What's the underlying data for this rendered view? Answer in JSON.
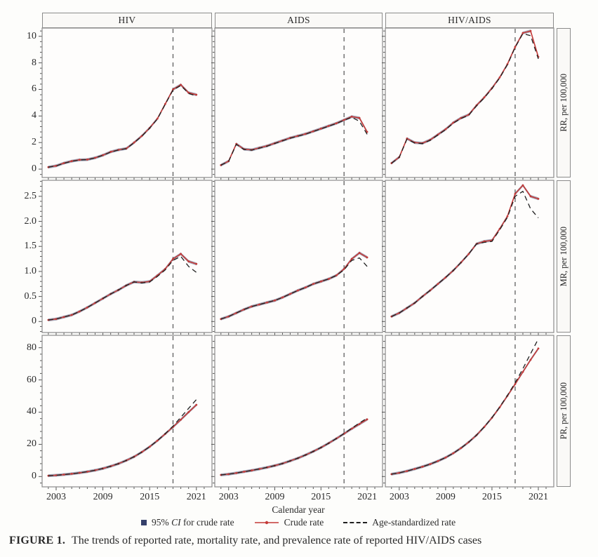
{
  "figure": {
    "caption_label": "FIGURE 1.",
    "caption_text": "The trends of reported rate, mortality rate, and prevalence rate of reported HIV/AIDS cases"
  },
  "chart_data": {
    "type": "line",
    "title": "",
    "xlabel": "Calendar year",
    "facet_columns": [
      "HIV",
      "AIDS",
      "HIV/AIDS"
    ],
    "years": [
      2002,
      2003,
      2004,
      2005,
      2006,
      2007,
      2008,
      2009,
      2010,
      2011,
      2012,
      2013,
      2014,
      2015,
      2016,
      2017,
      2018,
      2019,
      2020,
      2021
    ],
    "x_major_ticks": [
      2003,
      2009,
      2015,
      2021
    ],
    "x_minor_step": 1,
    "xlim": [
      2001.2,
      2023
    ],
    "reference_line_x": 2018,
    "grid": "off",
    "legend_position": "bottom",
    "colors": {
      "crude": "#c43a38",
      "age": "#1f1f1f",
      "ci": "#35406b",
      "refline": "#5f5f5f",
      "frame": "#8b8b8b"
    },
    "rows": [
      {
        "label": "RR, per 100,000",
        "ylim": [
          -0.63,
          10.62
        ],
        "ytick_values": [
          0,
          2,
          4,
          6,
          8,
          10
        ],
        "ytick_labels": [
          "0",
          "2",
          "4",
          "6",
          "8",
          "10"
        ],
        "y_minor_step": 0.4,
        "series": {
          "HIV": {
            "crude": [
              0.15,
              0.25,
              0.45,
              0.6,
              0.7,
              0.72,
              0.85,
              1.05,
              1.3,
              1.45,
              1.55,
              2.0,
              2.5,
              3.1,
              3.8,
              4.9,
              6.0,
              6.35,
              5.75,
              5.6
            ],
            "age_standardized": [
              0.15,
              0.24,
              0.44,
              0.59,
              0.69,
              0.71,
              0.84,
              1.04,
              1.28,
              1.44,
              1.54,
              1.98,
              2.48,
              3.08,
              3.78,
              4.88,
              5.95,
              6.3,
              5.7,
              5.5
            ]
          },
          "AIDS": {
            "crude": [
              0.3,
              0.6,
              1.9,
              1.5,
              1.45,
              1.6,
              1.75,
              1.95,
              2.15,
              2.35,
              2.5,
              2.65,
              2.85,
              3.05,
              3.25,
              3.45,
              3.7,
              3.95,
              3.85,
              2.8
            ],
            "age_standardized": [
              0.3,
              0.58,
              1.86,
              1.48,
              1.43,
              1.58,
              1.73,
              1.93,
              2.13,
              2.33,
              2.48,
              2.63,
              2.83,
              3.03,
              3.23,
              3.43,
              3.68,
              3.9,
              3.6,
              2.62
            ]
          },
          "HIV/AIDS": {
            "crude": [
              0.45,
              0.9,
              2.3,
              2.0,
              1.95,
              2.2,
              2.6,
              3.0,
              3.5,
              3.85,
              4.1,
              4.8,
              5.4,
              6.1,
              6.9,
              7.9,
              9.2,
              10.25,
              10.4,
              8.45
            ],
            "age_standardized": [
              0.44,
              0.88,
              2.26,
              1.97,
              1.92,
              2.17,
              2.57,
              2.97,
              3.46,
              3.81,
              4.06,
              4.76,
              5.36,
              6.06,
              6.86,
              7.86,
              9.16,
              10.2,
              10.05,
              8.3
            ]
          }
        }
      },
      {
        "label": "MR, per 100,000",
        "ylim": [
          -0.22,
          2.82
        ],
        "ytick_values": [
          0,
          0.5,
          1.0,
          1.5,
          2.0,
          2.5
        ],
        "ytick_labels": [
          "0",
          "0.5",
          "1.0",
          "1.5",
          "2.0",
          "2.5"
        ],
        "y_minor_step": 0.1,
        "series": {
          "HIV": {
            "crude": [
              0.03,
              0.05,
              0.09,
              0.13,
              0.2,
              0.28,
              0.37,
              0.46,
              0.55,
              0.63,
              0.72,
              0.79,
              0.78,
              0.8,
              0.92,
              1.05,
              1.25,
              1.35,
              1.2,
              1.15
            ],
            "age_standardized": [
              0.03,
              0.05,
              0.09,
              0.13,
              0.2,
              0.28,
              0.37,
              0.46,
              0.55,
              0.63,
              0.72,
              0.79,
              0.77,
              0.79,
              0.9,
              1.03,
              1.22,
              1.3,
              1.1,
              0.98
            ]
          },
          "AIDS": {
            "crude": [
              0.05,
              0.1,
              0.17,
              0.24,
              0.3,
              0.34,
              0.38,
              0.42,
              0.48,
              0.55,
              0.62,
              0.68,
              0.75,
              0.8,
              0.85,
              0.92,
              1.05,
              1.25,
              1.37,
              1.28
            ],
            "age_standardized": [
              0.05,
              0.1,
              0.17,
              0.24,
              0.3,
              0.34,
              0.38,
              0.42,
              0.48,
              0.55,
              0.62,
              0.68,
              0.75,
              0.8,
              0.85,
              0.92,
              1.03,
              1.22,
              1.27,
              1.1
            ]
          },
          "HIV/AIDS": {
            "crude": [
              0.1,
              0.17,
              0.27,
              0.37,
              0.5,
              0.62,
              0.75,
              0.88,
              1.02,
              1.18,
              1.35,
              1.55,
              1.6,
              1.62,
              1.85,
              2.1,
              2.55,
              2.72,
              2.5,
              2.45
            ],
            "age_standardized": [
              0.1,
              0.17,
              0.27,
              0.37,
              0.5,
              0.62,
              0.75,
              0.88,
              1.02,
              1.18,
              1.35,
              1.55,
              1.58,
              1.6,
              1.83,
              2.08,
              2.5,
              2.6,
              2.25,
              2.07
            ]
          }
        }
      },
      {
        "label": "PR, per 100,000",
        "ylim": [
          -6.4,
          87.7
        ],
        "ytick_values": [
          0,
          20,
          40,
          60,
          80
        ],
        "ytick_labels": [
          "0",
          "20",
          "40",
          "60",
          "80"
        ],
        "y_minor_step": 4,
        "series": {
          "HIV": {
            "crude": [
              0.5,
              0.8,
              1.2,
              1.7,
              2.3,
              3.0,
              3.9,
              5.0,
              6.4,
              8.0,
              10.0,
              12.3,
              15.2,
              18.5,
              22.3,
              26.5,
              30.8,
              35.3,
              40.0,
              44.5
            ],
            "age_standardized": [
              0.5,
              0.8,
              1.2,
              1.7,
              2.3,
              3.0,
              3.9,
              5.0,
              6.4,
              8.0,
              10.0,
              12.3,
              15.2,
              18.5,
              22.3,
              26.6,
              31.3,
              36.8,
              42.3,
              47.8
            ]
          },
          "AIDS": {
            "crude": [
              1.0,
              1.5,
              2.2,
              3.0,
              3.8,
              4.7,
              5.7,
              6.8,
              8.1,
              9.7,
              11.4,
              13.4,
              15.6,
              18.0,
              20.7,
              23.6,
              26.6,
              29.7,
              32.6,
              35.5
            ],
            "age_standardized": [
              1.0,
              1.5,
              2.2,
              3.0,
              3.8,
              4.7,
              5.7,
              6.8,
              8.1,
              9.7,
              11.4,
              13.4,
              15.6,
              18.0,
              20.7,
              23.6,
              26.7,
              30.0,
              33.3,
              36.3
            ]
          },
          "HIV/AIDS": {
            "crude": [
              1.5,
              2.3,
              3.4,
              4.7,
              6.1,
              7.7,
              9.6,
              11.8,
              14.5,
              17.7,
              21.4,
              25.7,
              30.8,
              36.5,
              43.0,
              50.1,
              57.4,
              65.0,
              72.5,
              79.5
            ],
            "age_standardized": [
              1.5,
              2.3,
              3.4,
              4.7,
              6.1,
              7.7,
              9.6,
              11.8,
              14.5,
              17.7,
              21.4,
              25.7,
              30.8,
              36.6,
              43.2,
              50.4,
              58.2,
              67.0,
              76.3,
              85.5
            ]
          }
        }
      }
    ],
    "legend": [
      {
        "type": "ci",
        "label_pre": "95% ",
        "label_italic": "CI",
        "label_post": " for crude rate"
      },
      {
        "type": "line_dot",
        "label": "Crude rate"
      },
      {
        "type": "dashed",
        "label": "Age-standardized rate"
      }
    ]
  }
}
